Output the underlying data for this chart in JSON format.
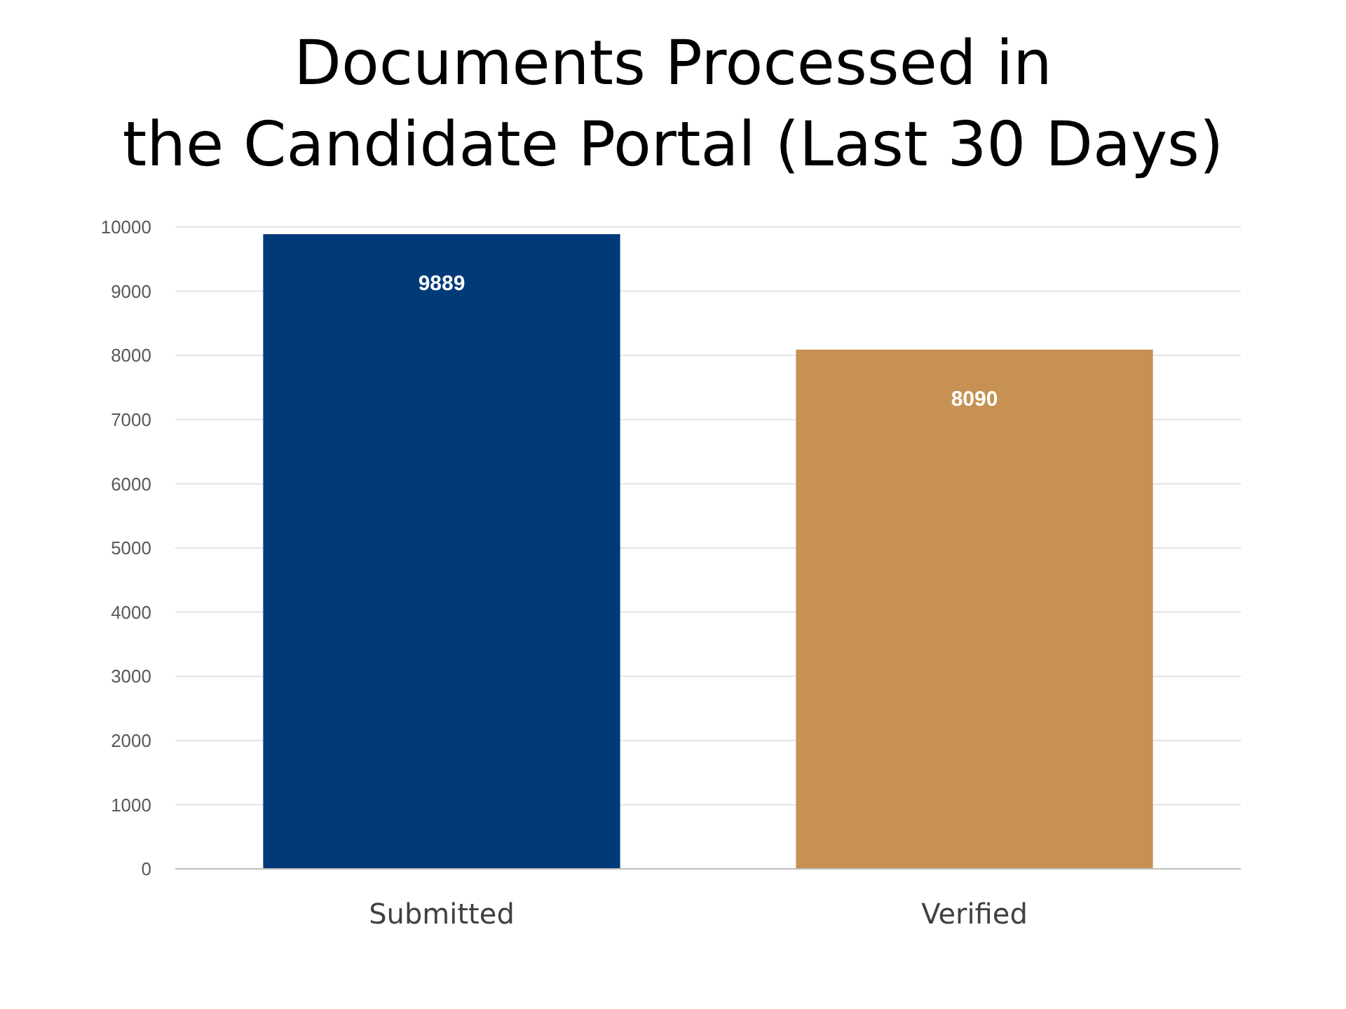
{
  "chart_data": {
    "type": "bar",
    "title": "Documents Processed in\nthe Candidate Portal (Last 30 Days)",
    "categories": [
      "Submitted",
      "Verified"
    ],
    "values": [
      9889,
      8090
    ],
    "colors": [
      "#003a78",
      "#c69153"
    ],
    "ylim": [
      0,
      10000
    ],
    "yticks": [
      0,
      1000,
      2000,
      3000,
      4000,
      5000,
      6000,
      7000,
      8000,
      9000,
      10000
    ],
    "grid": "y",
    "data_labels": true
  }
}
